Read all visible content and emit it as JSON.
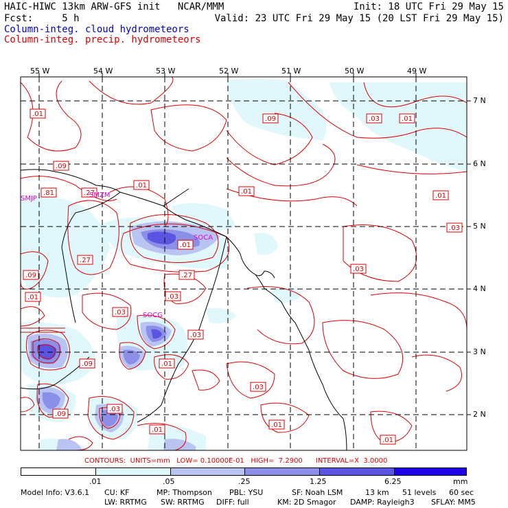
{
  "header": {
    "line1_left": "HAIC-HIWC 13km ARW-GFS init   NCAR/MMM",
    "line1_right": "Init: 18 UTC Fri 29 May 15",
    "line2_left": "Fcst:     5 h",
    "line2_right": "Valid: 23 UTC Fri 29 May 15 (20 LST Fri 29 May 15)",
    "field1": "Column-integ. cloud hydrometeors",
    "field2": "Column-integ. precip. hydrometeors"
  },
  "lon_labels": [
    "55 W",
    "54 W",
    "53 W",
    "52 W",
    "51 W",
    "50 W",
    "49 W"
  ],
  "lat_labels": [
    "7 N",
    "6 N",
    "5 N",
    "4 N",
    "3 N",
    "2 N"
  ],
  "contour_labels": [
    ".01",
    ".09",
    ".09",
    ".01",
    ".03",
    ".01",
    ".01",
    ".81",
    ".27",
    ".01",
    ".03",
    ".01",
    ".27",
    ".09",
    ".03",
    ".27",
    ".01",
    ".03",
    ".03",
    ".03",
    ".01",
    ".09",
    ".03",
    ".03",
    ".09",
    ".01",
    ".01",
    ".01"
  ],
  "station_labels": [
    "SMJP",
    "SMZM",
    "SOCA",
    "SOCG"
  ],
  "contours_info": "CONTOURS:  UNITS=mm   LOW= 0.10000E-01   HIGH=  7.2900      INTERVAL=X  3.0000",
  "colorbar": {
    "labels": [
      ".01",
      ".05",
      ".25",
      "1.25",
      "6.25"
    ],
    "units": "mm",
    "colors": [
      "#ffffff",
      "#e0f7fb",
      "#b9c4f2",
      "#8c8fe8",
      "#5a55e0",
      "#1f00e6"
    ]
  },
  "model_info": {
    "row1": [
      "Model Info: V3.6.1",
      "CU: KF",
      "MP: Thompson",
      "PBL: YSU",
      "SF: Noah LSM",
      "13 km",
      "51 levels",
      "60 sec"
    ],
    "row2": [
      "LW: RRTMG",
      "SW: RRTMG",
      "DIFF: full",
      "KM: 2D Smagor",
      "DAMP: Rayleigh3",
      "SFLAY: MM5"
    ]
  }
}
